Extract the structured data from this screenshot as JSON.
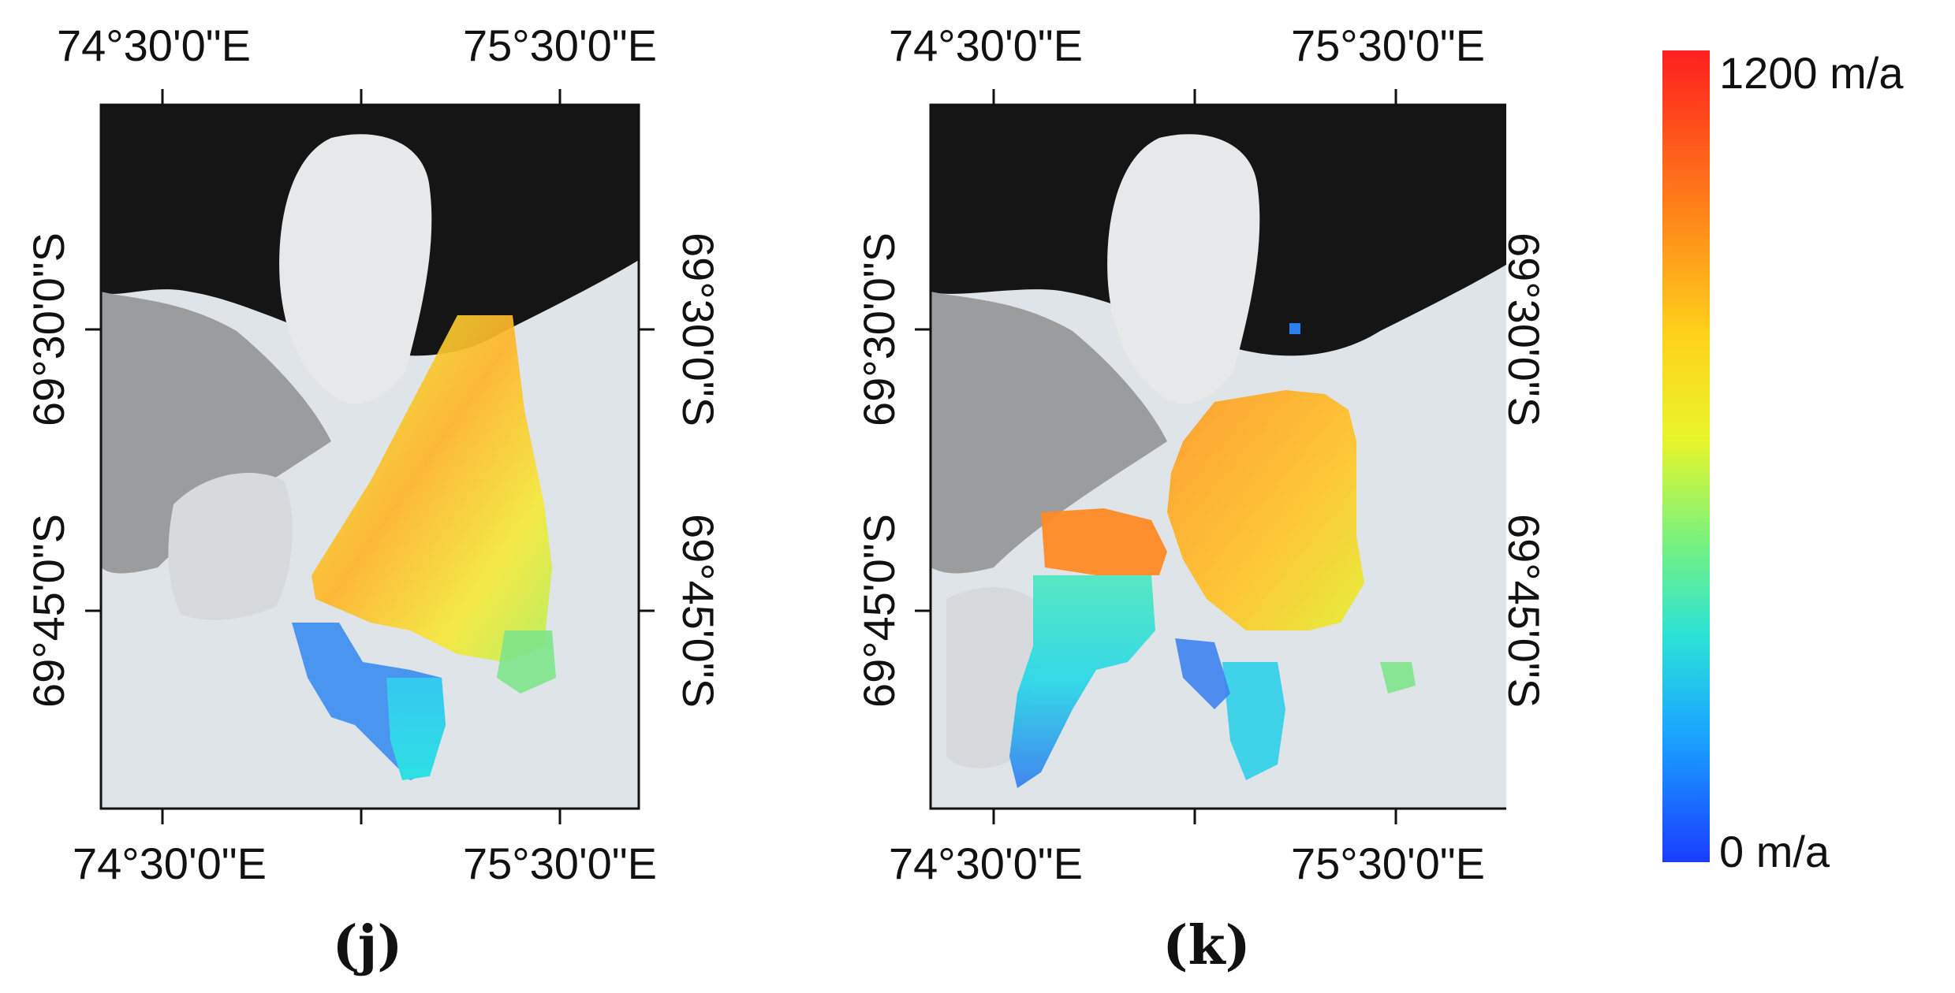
{
  "panels": [
    {
      "id": "j",
      "label": "(j)",
      "top_lon_labels": [
        "74°30'0\"E",
        "75°30'0\"E"
      ],
      "bottom_lon_labels": [
        "74°30'0\"E",
        "75°30'0\"E"
      ],
      "left_lat_labels": [
        "69°30'0\"S",
        "69°45'0\"S"
      ],
      "right_lat_labels": [
        "69°30'0\"S",
        "69°45'0\"S"
      ]
    },
    {
      "id": "k",
      "label": "(k)",
      "top_lon_labels": [
        "74°30'0\"E",
        "75°30'0\"E"
      ],
      "bottom_lon_labels": [
        "74°30'0\"E",
        "75°30'0\"E"
      ],
      "left_lat_labels": [
        "69°30'0\"S",
        "69°45'0\"S"
      ],
      "right_lat_labels": [
        "69°30'0\"S",
        "69°45'0\"S"
      ]
    }
  ],
  "legend": {
    "max_label": "1200 m/a",
    "min_label": "0 m/a",
    "colors": [
      "#ff1f1f",
      "#ff7a1a",
      "#ffd21a",
      "#e8f52a",
      "#7cf27a",
      "#2be3d6",
      "#1aa6ff",
      "#1a3dff"
    ]
  }
}
